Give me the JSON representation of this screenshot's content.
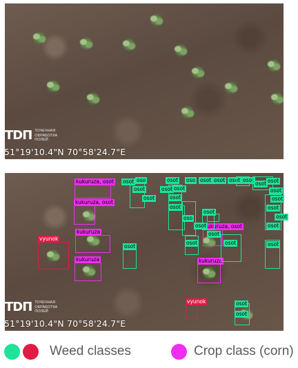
{
  "panels": {
    "top": {
      "logo": {
        "mark": "TDП",
        "caption": "Точечная обработка полей"
      },
      "coordinates": "51°19'10.4\"N 70°58'24.7\"E"
    },
    "bottom": {
      "logo": {
        "mark": "TDП",
        "caption": "Точечная обработка полей"
      },
      "coordinates": "51°19'10.4\"N 70°58'24.7\"E"
    }
  },
  "detections": {
    "crop": [
      "kukuruza, osot",
      "kukuruza, osot",
      "kukuruza",
      "kukuruza",
      "kukuruza, osot",
      "kukuruza"
    ],
    "weed": [
      "osot",
      "osot",
      "oso",
      "osot",
      "osot",
      "oso",
      "osot",
      "osot",
      "osot",
      "osot",
      "osot",
      "oso",
      "osot",
      "osot",
      "osot",
      "osot",
      "osot",
      "osot",
      "osot",
      "osot",
      "osot",
      "osot",
      "osot",
      "osot",
      "osot",
      "osot",
      "osot",
      "osot",
      "osot",
      "osot",
      "osot"
    ],
    "vyunok": [
      "vyunok",
      "vyunok"
    ]
  },
  "legend": {
    "weed_label": "Weed classes",
    "crop_label": "Crop class (corn)",
    "colors": {
      "weed": "#1ee39a",
      "vyunok": "#e11b46",
      "crop": "#ef2ff0"
    }
  }
}
